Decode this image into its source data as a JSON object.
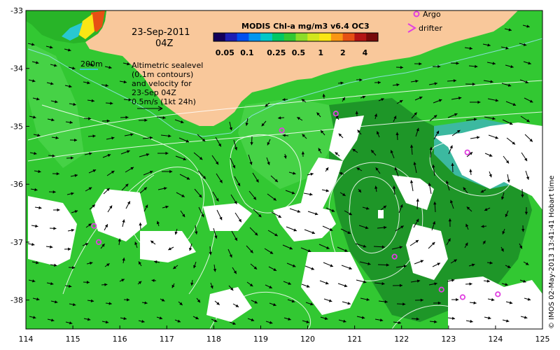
{
  "map": {
    "date_label": "23-Sep-2011",
    "time_label": "04Z",
    "bathy_label": "200m",
    "annotation_lines": [
      "Altimetric sealevel",
      "(0.1m contours)",
      "and velocity for",
      "23-Sep 04Z",
      "0.5m/s (1kt 24h)"
    ],
    "colorbar": {
      "title": "MODIS Chl-a mg/m3 v6.4 OC3",
      "ticks": [
        "0.05",
        "0.1",
        "0.25",
        "0.5",
        "1",
        "2",
        "4"
      ],
      "colors": [
        "#14005a",
        "#1e1eb4",
        "#0050f0",
        "#0096f0",
        "#00c8c8",
        "#00c864",
        "#32c832",
        "#8cdc28",
        "#d2e61e",
        "#fae614",
        "#fa9614",
        "#e65014",
        "#b41414",
        "#780a0a"
      ]
    },
    "legend": {
      "argo_label": "Argo",
      "drifter_label": "drifter"
    },
    "credit": "© IMOS 02-May-2013 13:41:41 Hobart time",
    "x_ticks": [
      "114",
      "115",
      "116",
      "117",
      "118",
      "119",
      "120",
      "121",
      "122",
      "123",
      "124",
      "125"
    ],
    "y_ticks": [
      "-33",
      "-34",
      "-35",
      "-36",
      "-37",
      "-38"
    ],
    "lon_range": [
      114,
      125
    ],
    "lat_range": [
      -38.5,
      -33
    ],
    "colors": {
      "land": "#f9c89b",
      "ocean_green": "#32c832",
      "ocean_light": "#28b428",
      "ocean_dark": "#1e9628",
      "cloud": "#ffffff",
      "argo": "#e040e0",
      "contour": "#ffffff",
      "arrow": "#000000"
    },
    "argo_floats": [
      [
        120.6,
        -34.78
      ],
      [
        119.45,
        -35.07
      ],
      [
        123.4,
        -35.45
      ],
      [
        115.45,
        -36.72
      ],
      [
        115.55,
        -37.0
      ],
      [
        121.85,
        -37.25
      ],
      [
        122.85,
        -37.82
      ],
      [
        123.3,
        -37.95
      ],
      [
        124.05,
        -37.9
      ]
    ]
  }
}
